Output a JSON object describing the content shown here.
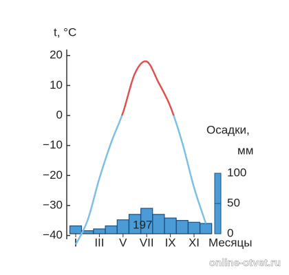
{
  "chart_data": {
    "type": "climate",
    "y_label": "t, °C",
    "y2_label_line1": "Осадки,",
    "y2_label_line2": "мм",
    "x_label": "Месяцы",
    "annotation": "197",
    "watermark": "online-otvet.ru",
    "categories": [
      "I",
      null,
      "III",
      null,
      "V",
      null,
      "VII",
      null,
      "IX",
      null,
      "XI",
      null
    ],
    "ylim": [
      -44,
      22
    ],
    "yticks": [
      20,
      10,
      0,
      {
        "value": -10,
        "label": "−10"
      },
      {
        "value": -20,
        "label": "−20"
      },
      {
        "value": -30,
        "label": "−30"
      },
      {
        "value": -40,
        "label": "−40"
      }
    ],
    "y2lim": [
      0,
      100
    ],
    "y2ticks": [
      0,
      50,
      100
    ],
    "series": [
      {
        "name": "t",
        "kind": "line",
        "color": "#7cc0e4",
        "above_zero_color": "#e05050",
        "values": [
          -43,
          -35,
          -21,
          -9,
          1,
          14,
          18,
          11,
          3,
          -9,
          -24,
          -36
        ]
      },
      {
        "name": "Осадки",
        "kind": "bar",
        "axis": "y2",
        "color": "#4a9bd6",
        "edge_color": "#1d4f7e",
        "values": [
          13,
          5,
          8,
          13,
          23,
          32,
          42,
          32,
          26,
          22,
          19,
          17
        ]
      }
    ]
  }
}
